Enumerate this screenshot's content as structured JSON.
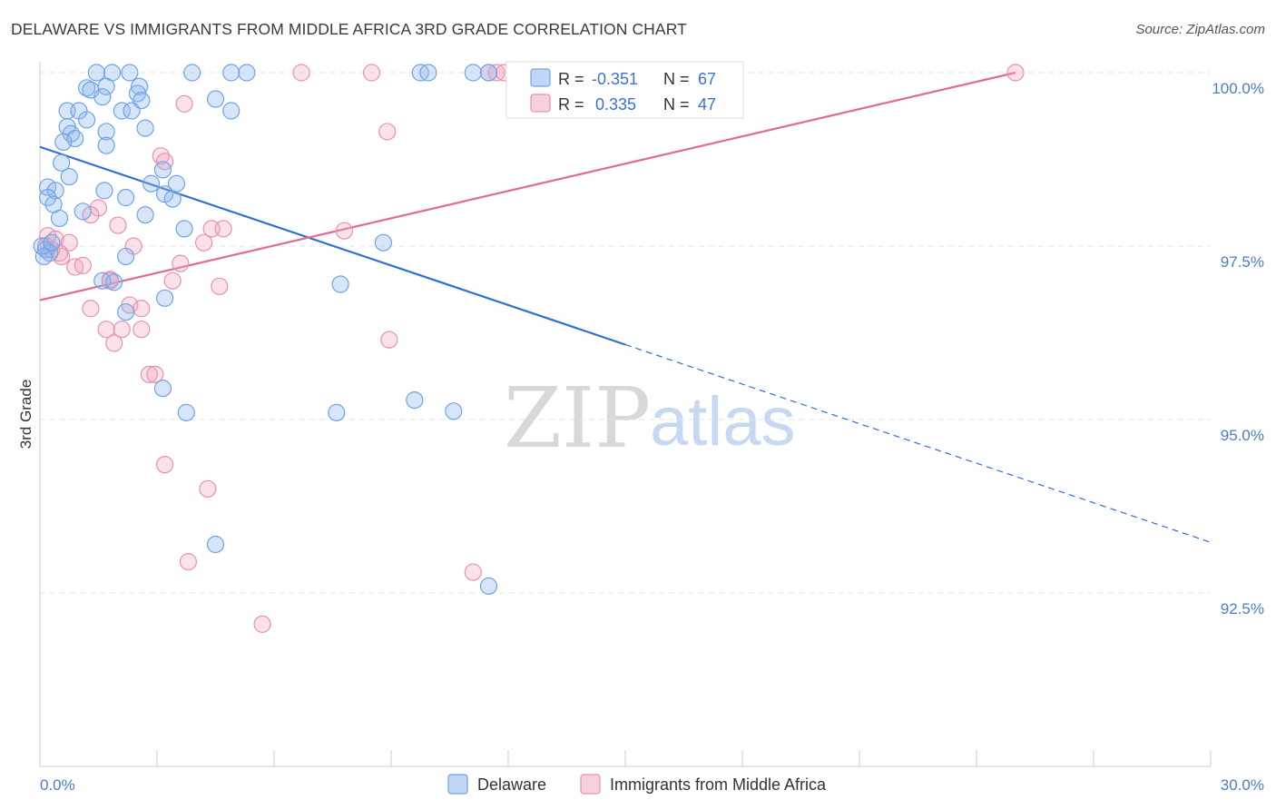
{
  "title": "DELAWARE VS IMMIGRANTS FROM MIDDLE AFRICA 3RD GRADE CORRELATION CHART",
  "source": "Source: ZipAtlas.com",
  "watermark": {
    "zip": "ZIP",
    "atlas": "atlas"
  },
  "colors": {
    "blue": "#6fa3e6",
    "blue_fill": "rgba(140,180,235,0.35)",
    "blue_line": "#2f6fcf",
    "pink": "#e890b0",
    "pink_fill": "rgba(240,170,195,0.35)",
    "pink_line": "#e06a92",
    "axis_text": "#4a7cc9",
    "grid": "#e3e3e3"
  },
  "legend": {
    "rows": [
      {
        "r_label": "R =",
        "r_value": "-0.351",
        "n_label": "N =",
        "n_value": "67"
      },
      {
        "r_label": "R =",
        "r_value": "0.335",
        "n_label": "N =",
        "n_value": "47"
      }
    ]
  },
  "chart_data": {
    "type": "scatter",
    "title": "DELAWARE VS IMMIGRANTS FROM MIDDLE AFRICA 3RD GRADE CORRELATION CHART",
    "xlabel": "",
    "ylabel": "3rd Grade",
    "xlim": [
      0,
      30
    ],
    "ylim": [
      90.0,
      100.1
    ],
    "x_tick_labels": [
      "0.0%",
      "30.0%"
    ],
    "y_ticks": [
      92.5,
      95.0,
      97.5,
      100.0
    ],
    "y_tick_labels": [
      "92.5%",
      "95.0%",
      "97.5%",
      "100.0%"
    ],
    "grid": true,
    "series": [
      {
        "name": "Delaware",
        "color": "#6fa3e6",
        "r": -0.351,
        "n": 67,
        "trend": {
          "x0": 0.0,
          "y0": 98.93,
          "x1": 15.0,
          "y1": 96.08,
          "dashed_to_x": 30.0,
          "dashed_to_y": 93.23
        },
        "points": [
          [
            1.45,
            100.0
          ],
          [
            1.85,
            100.0
          ],
          [
            2.3,
            100.0
          ],
          [
            3.9,
            100.0
          ],
          [
            4.9,
            100.0
          ],
          [
            5.3,
            100.0
          ],
          [
            9.75,
            100.0
          ],
          [
            9.95,
            100.0
          ],
          [
            11.1,
            100.0
          ],
          [
            11.5,
            100.0
          ],
          [
            1.2,
            99.78
          ],
          [
            1.7,
            99.8
          ],
          [
            2.55,
            99.8
          ],
          [
            1.3,
            99.75
          ],
          [
            1.6,
            99.65
          ],
          [
            2.5,
            99.7
          ],
          [
            4.5,
            99.62
          ],
          [
            2.6,
            99.6
          ],
          [
            0.7,
            99.45
          ],
          [
            1.0,
            99.45
          ],
          [
            2.1,
            99.45
          ],
          [
            2.35,
            99.45
          ],
          [
            4.9,
            99.45
          ],
          [
            1.2,
            99.32
          ],
          [
            0.7,
            99.22
          ],
          [
            1.7,
            99.15
          ],
          [
            2.7,
            99.2
          ],
          [
            0.8,
            99.12
          ],
          [
            0.9,
            99.05
          ],
          [
            0.6,
            99.0
          ],
          [
            1.7,
            98.95
          ],
          [
            0.55,
            98.7
          ],
          [
            3.15,
            98.6
          ],
          [
            0.75,
            98.5
          ],
          [
            0.2,
            98.35
          ],
          [
            3.5,
            98.4
          ],
          [
            2.85,
            98.4
          ],
          [
            0.4,
            98.3
          ],
          [
            0.2,
            98.2
          ],
          [
            2.2,
            98.2
          ],
          [
            3.2,
            98.25
          ],
          [
            3.4,
            98.18
          ],
          [
            0.35,
            98.1
          ],
          [
            1.1,
            98.0
          ],
          [
            0.5,
            97.9
          ],
          [
            2.7,
            97.95
          ],
          [
            3.7,
            97.75
          ],
          [
            8.8,
            97.55
          ],
          [
            0.15,
            97.45
          ],
          [
            0.25,
            97.4
          ],
          [
            0.1,
            97.35
          ],
          [
            2.2,
            97.35
          ],
          [
            1.6,
            97.0
          ],
          [
            1.9,
            96.98
          ],
          [
            7.7,
            96.95
          ],
          [
            3.2,
            96.75
          ],
          [
            2.2,
            96.55
          ],
          [
            3.15,
            95.45
          ],
          [
            7.6,
            95.1
          ],
          [
            9.6,
            95.28
          ],
          [
            10.6,
            95.12
          ],
          [
            3.75,
            95.1
          ],
          [
            4.5,
            93.2
          ],
          [
            11.5,
            92.6
          ],
          [
            0.05,
            97.5
          ],
          [
            0.3,
            97.55
          ],
          [
            1.65,
            98.3
          ]
        ]
      },
      {
        "name": "Immigrants from Middle Africa",
        "color": "#e890b0",
        "r": 0.335,
        "n": 47,
        "trend": {
          "x0": 0.0,
          "y0": 96.72,
          "x1": 25.0,
          "y1": 100.0
        },
        "points": [
          [
            6.7,
            100.0
          ],
          [
            8.5,
            100.0
          ],
          [
            11.5,
            100.0
          ],
          [
            11.7,
            100.0
          ],
          [
            11.9,
            100.0
          ],
          [
            25.0,
            100.0
          ],
          [
            3.7,
            99.55
          ],
          [
            8.9,
            99.15
          ],
          [
            3.1,
            98.8
          ],
          [
            3.2,
            98.72
          ],
          [
            1.5,
            98.05
          ],
          [
            1.3,
            97.95
          ],
          [
            2.0,
            97.8
          ],
          [
            4.4,
            97.75
          ],
          [
            4.7,
            97.75
          ],
          [
            7.8,
            97.72
          ],
          [
            0.2,
            97.65
          ],
          [
            0.4,
            97.6
          ],
          [
            0.75,
            97.55
          ],
          [
            2.4,
            97.5
          ],
          [
            4.2,
            97.55
          ],
          [
            0.55,
            97.35
          ],
          [
            0.3,
            97.45
          ],
          [
            0.9,
            97.2
          ],
          [
            1.1,
            97.22
          ],
          [
            3.6,
            97.25
          ],
          [
            1.8,
            97.02
          ],
          [
            3.4,
            97.0
          ],
          [
            4.6,
            96.92
          ],
          [
            1.3,
            96.6
          ],
          [
            2.3,
            96.65
          ],
          [
            2.6,
            96.6
          ],
          [
            1.7,
            96.3
          ],
          [
            2.1,
            96.3
          ],
          [
            2.6,
            96.3
          ],
          [
            1.9,
            96.1
          ],
          [
            8.95,
            96.15
          ],
          [
            2.8,
            95.65
          ],
          [
            2.95,
            95.65
          ],
          [
            3.2,
            94.35
          ],
          [
            4.3,
            94.0
          ],
          [
            3.8,
            92.95
          ],
          [
            11.1,
            92.8
          ],
          [
            5.7,
            92.05
          ],
          [
            0.15,
            97.5
          ],
          [
            0.5,
            97.4
          ],
          [
            1.8,
            97.0
          ]
        ]
      }
    ]
  }
}
